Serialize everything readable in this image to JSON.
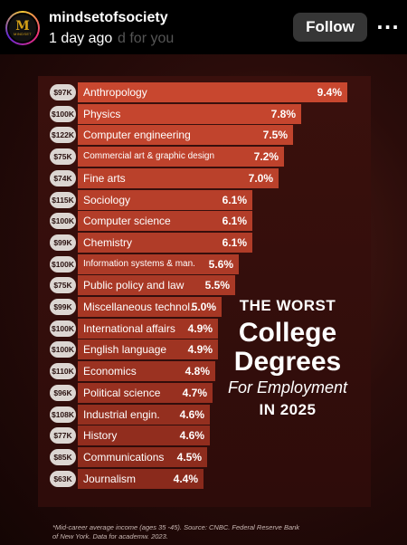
{
  "header": {
    "username": "mindsetofsociety",
    "timestamp": "1 day ago",
    "ghost_text": "d for you",
    "follow_label": "Follow",
    "more_label": "···",
    "avatar_text_main": "M",
    "avatar_text_sub": "MINDSET"
  },
  "infographic": {
    "title_line1": "THE WORST",
    "title_line2": "College",
    "title_line3": "Degrees",
    "title_line4": "For Employment",
    "title_line5": "IN 2025",
    "footnote": "*Mid-career average income (ages 35 -45). Source: CNBC. Federal Reserve Bank of New York. Data for academw. 2023."
  },
  "colors": {
    "bar_top": "#c8472f",
    "bar_bottom": "#8a2a1c",
    "salary_pill": "#dcd6d2"
  },
  "chart_data": {
    "type": "bar",
    "categories": [
      "Anthropology",
      "Physics",
      "Computer engineering",
      "Commercial art & graphic design",
      "Fine arts",
      "Sociology",
      "Computer science",
      "Chemistry",
      "Information systems & man.",
      "Public policy and law",
      "Miscellaneous technol.",
      "International affairs",
      "English language",
      "Economics",
      "Political science",
      "Industrial engin.",
      "History",
      "Communications",
      "Journalism"
    ],
    "salaries": [
      "$97K",
      "$100K",
      "$122K",
      "$75K",
      "$74K",
      "$115K",
      "$100K",
      "$99K",
      "$100K",
      "$75K",
      "$99K",
      "$100K",
      "$100K",
      "$110K",
      "$96K",
      "$108K",
      "$77K",
      "$85K",
      "$63K"
    ],
    "values": [
      9.4,
      7.8,
      7.5,
      7.2,
      7.0,
      6.1,
      6.1,
      6.1,
      5.6,
      5.5,
      5.0,
      4.9,
      4.9,
      4.8,
      4.7,
      4.6,
      4.6,
      4.5,
      4.4
    ],
    "value_labels": [
      "9.4%",
      "7.8%",
      "7.5%",
      "7.2%",
      "7.0%",
      "6.1%",
      "6.1%",
      "6.1%",
      "5.6%",
      "5.5%",
      "5.0%",
      "4.9%",
      "4.9%",
      "4.8%",
      "4.7%",
      "4.6%",
      "4.6%",
      "4.5%",
      "4.4%"
    ],
    "title": "THE WORST College Degrees For Employment IN 2025"
  }
}
